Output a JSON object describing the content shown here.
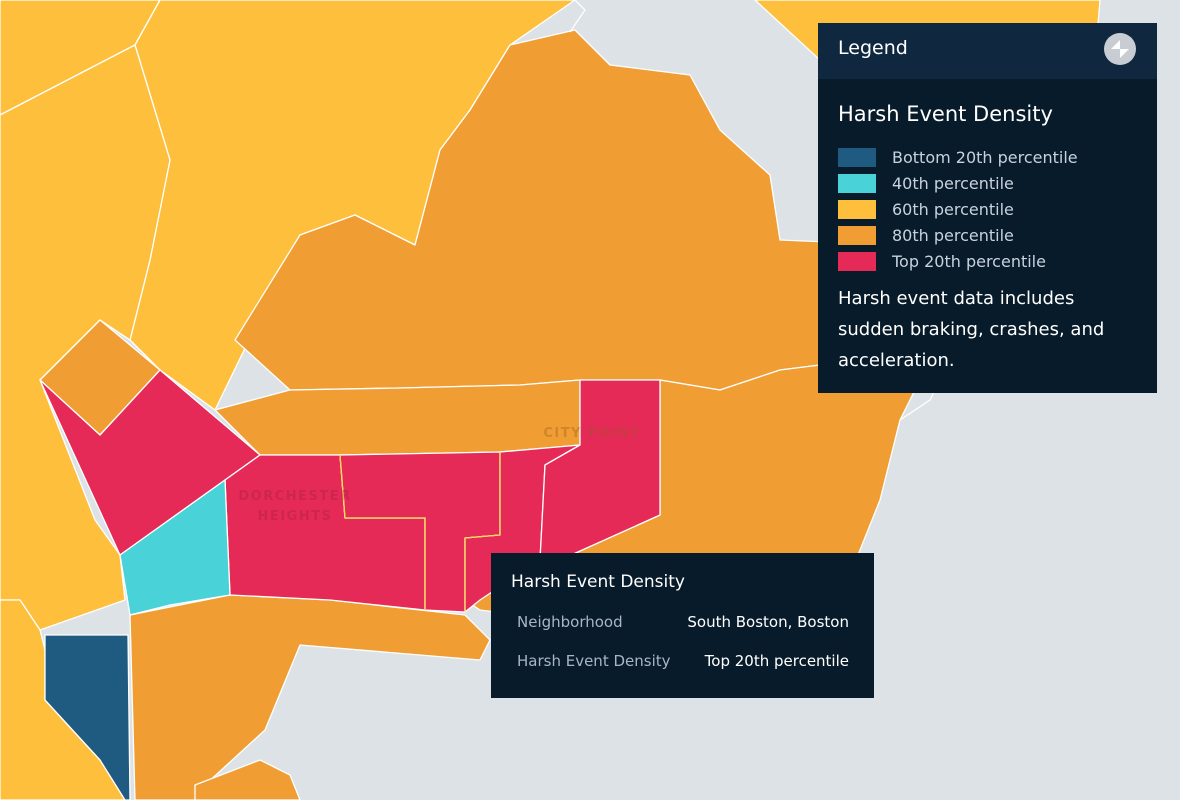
{
  "legend": {
    "title": "Legend",
    "toggle_icon": "collapse-icon",
    "heading": "Harsh Event Density",
    "items": [
      {
        "label": "Bottom 20th percentile",
        "color": "#1f5a80"
      },
      {
        "label": "40th percentile",
        "color": "#49d3d8"
      },
      {
        "label": "60th percentile",
        "color": "#fdbf3c"
      },
      {
        "label": "80th percentile",
        "color": "#f09d33"
      },
      {
        "label": "Top 20th percentile",
        "color": "#e62a57"
      }
    ],
    "note": "Harsh event data includes sudden braking, crashes, and acceleration."
  },
  "map": {
    "labels": {
      "dorchester_line1": "DORCHESTER",
      "dorchester_line2": "HEIGHTS",
      "city_point": "CITY POINT"
    },
    "water_color": "#dde2e6"
  },
  "tooltip": {
    "title": "Harsh Event Density",
    "rows": [
      {
        "key": "Neighborhood",
        "value": "South Boston, Boston"
      },
      {
        "key": "Harsh Event Density",
        "value": "Top 20th percentile"
      }
    ]
  }
}
